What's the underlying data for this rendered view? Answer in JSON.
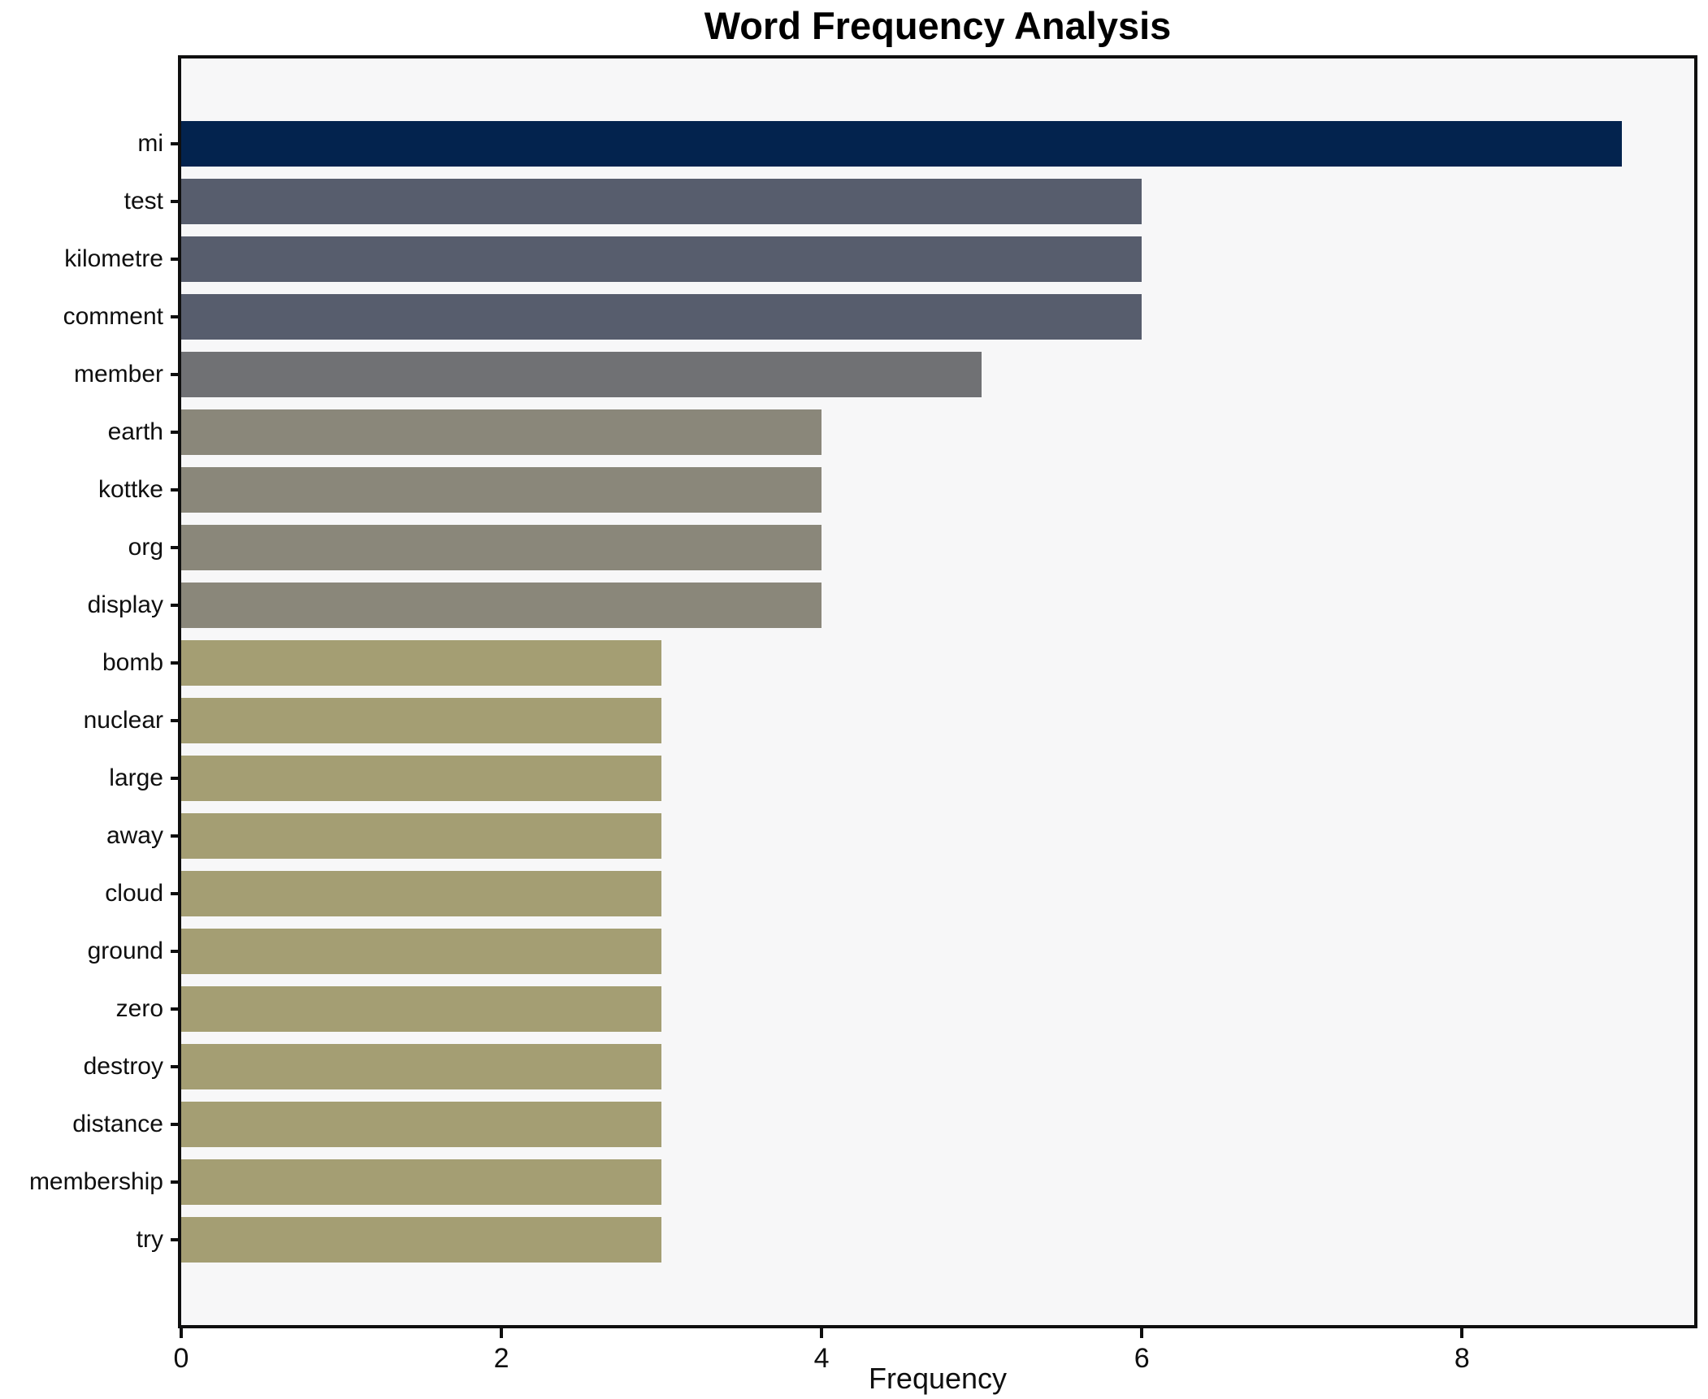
{
  "figure": {
    "background": "#ffffff",
    "plot_background": "#f7f7f8",
    "frame_color": "#0f0f0f",
    "text_color": "#0f0f0f"
  },
  "chart_data": {
    "type": "bar",
    "orientation": "horizontal",
    "title": "Word Frequency Analysis",
    "xlabel": "Frequency",
    "ylabel": "",
    "categories": [
      "mi",
      "test",
      "kilometre",
      "comment",
      "member",
      "earth",
      "kottke",
      "org",
      "display",
      "bomb",
      "nuclear",
      "large",
      "away",
      "cloud",
      "ground",
      "zero",
      "destroy",
      "distance",
      "membership",
      "try"
    ],
    "values": [
      9,
      6,
      6,
      6,
      5,
      4,
      4,
      4,
      4,
      3,
      3,
      3,
      3,
      3,
      3,
      3,
      3,
      3,
      3,
      3
    ],
    "bar_colors": [
      "#03234e",
      "#575d6d",
      "#575d6d",
      "#575d6d",
      "#707174",
      "#8a877a",
      "#8a877a",
      "#8a877a",
      "#8a877a",
      "#a49e73",
      "#a49e73",
      "#a49e73",
      "#a49e73",
      "#a49e73",
      "#a49e73",
      "#a49e73",
      "#a49e73",
      "#a49e73",
      "#a49e73",
      "#a49e73"
    ],
    "xlim": [
      0,
      9.45
    ],
    "x_ticks": [
      0,
      2,
      4,
      6,
      8
    ],
    "grid": false,
    "legend_position": "none"
  }
}
